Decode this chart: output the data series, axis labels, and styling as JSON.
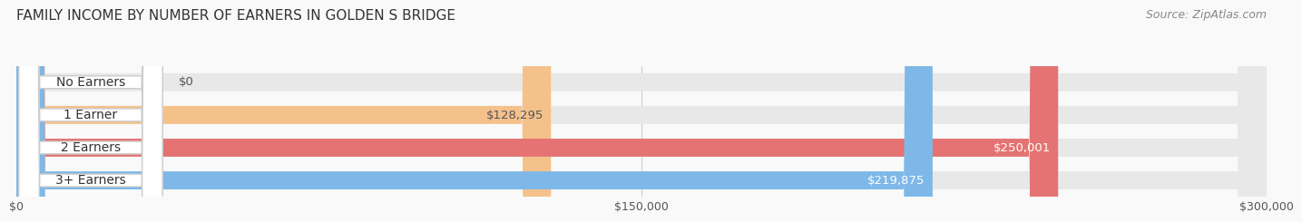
{
  "title": "FAMILY INCOME BY NUMBER OF EARNERS IN GOLDEN S BRIDGE",
  "source": "Source: ZipAtlas.com",
  "categories": [
    "No Earners",
    "1 Earner",
    "2 Earners",
    "3+ Earners"
  ],
  "values": [
    0,
    128295,
    250001,
    219875
  ],
  "bar_colors": [
    "#f48fb1",
    "#f5c18a",
    "#e57373",
    "#7eb8e8"
  ],
  "bar_bg_color": "#e8e8e8",
  "label_colors": [
    "#555555",
    "#555555",
    "#ffffff",
    "#ffffff"
  ],
  "value_labels": [
    "$0",
    "$128,295",
    "$250,001",
    "$219,875"
  ],
  "xmax": 300000,
  "xticklabels": [
    "$0",
    "$150,000",
    "$300,000"
  ],
  "title_fontsize": 11,
  "source_fontsize": 9,
  "bar_height": 0.55,
  "label_fontsize": 10,
  "value_fontsize": 9.5,
  "background_color": "#f9f9f9"
}
